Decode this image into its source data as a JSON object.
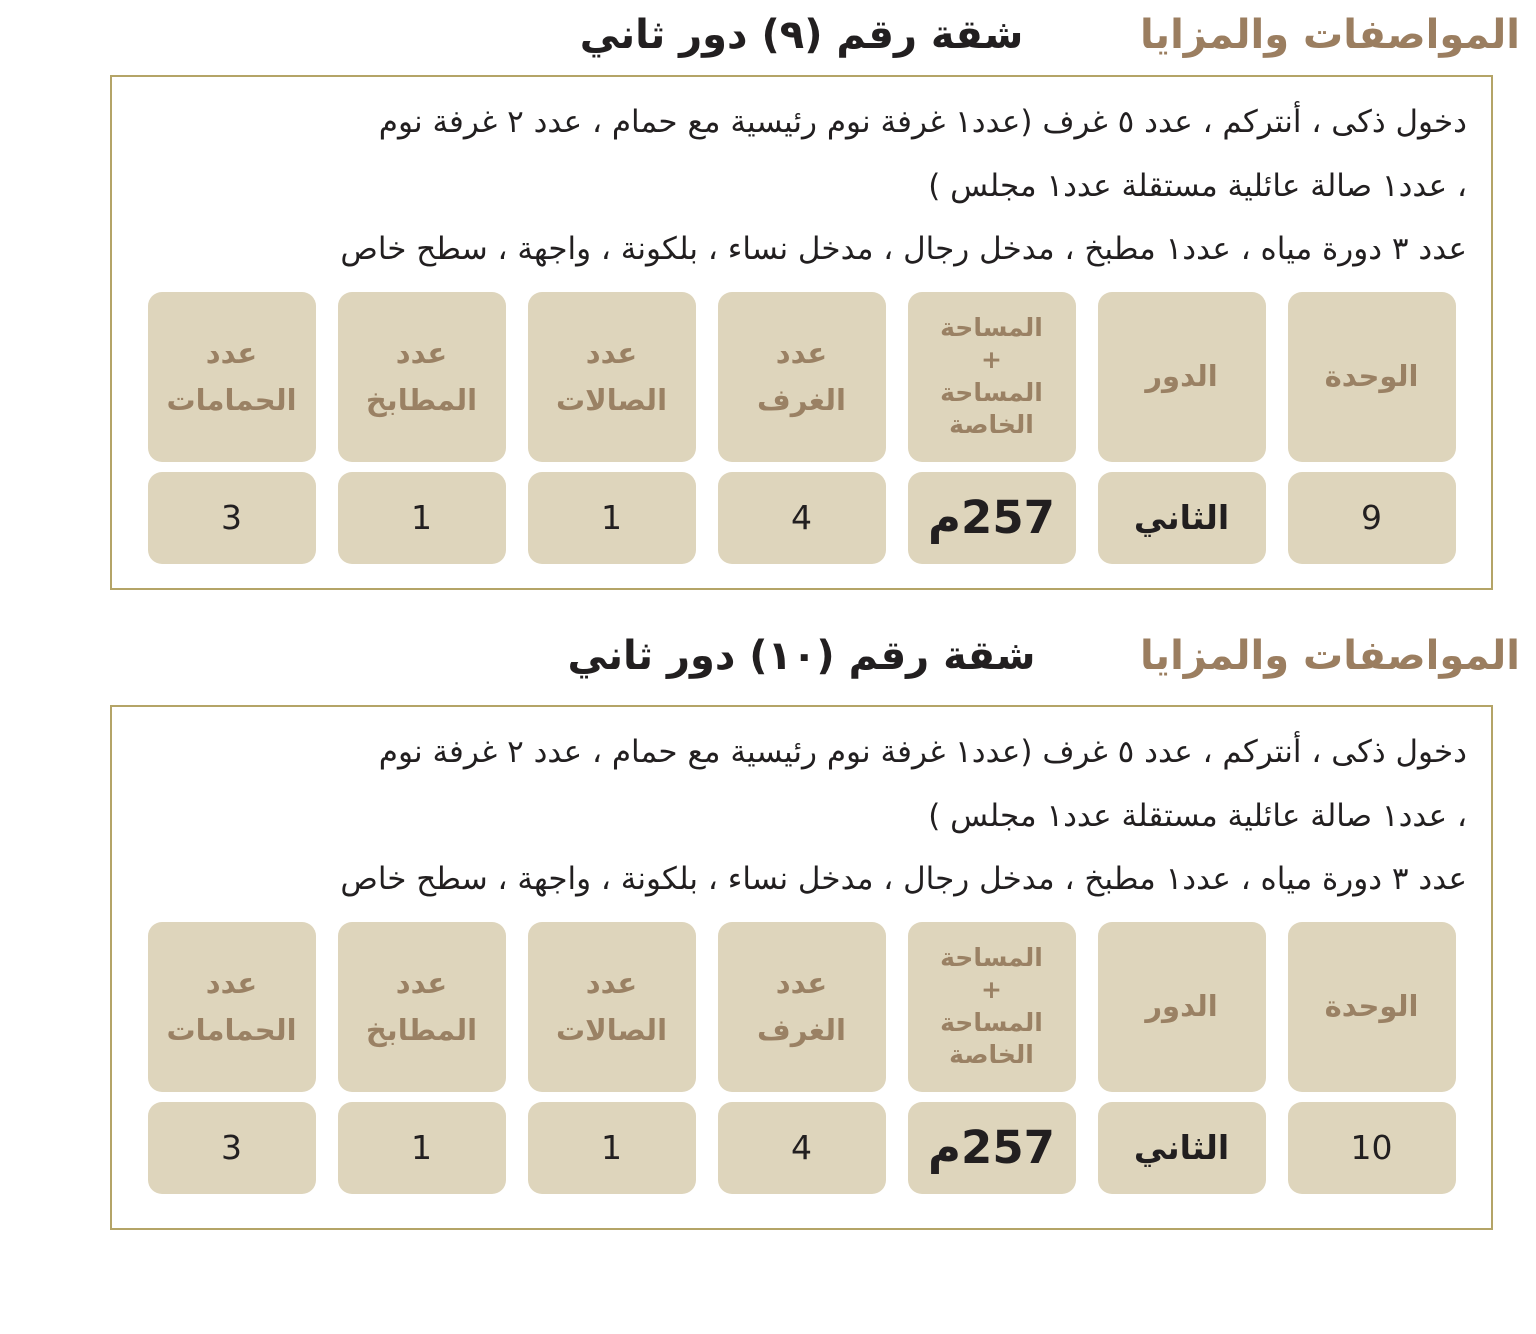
{
  "theme": {
    "accent_brown": "#9b7e60",
    "cell_bg": "#ded5bc",
    "header_text": "#9a8164",
    "border_gold": "#b4a467",
    "text_dark": "#221f20"
  },
  "sections": [
    {
      "label": "المواصفات والمزايا",
      "title": "شقة رقم (٩) دور ثاني",
      "description_lines": [
        "دخول ذكى ، أنتركم ، عدد ٥ غرف (عدد١ غرفة نوم رئيسية مع حمام ،  عدد ٢ غرفة نوم",
        "، عدد١ صالة عائلية مستقلة  عدد١ مجلس )",
        "عدد ٣ دورة مياه ، عدد١ مطبخ ، مدخل رجال ، مدخل نساء ، بلكونة ، واجهة ، سطح خاص"
      ],
      "table": {
        "headers": [
          "الوحدة",
          "الدور",
          "المساحة\n+\nالمساحة\nالخاصة",
          "عدد\nالغرف",
          "عدد\nالصالات",
          "عدد\nالمطابخ",
          "عدد\nالحمامات"
        ],
        "values": [
          "9",
          "الثاني",
          "257م",
          "4",
          "1",
          "1",
          "3"
        ]
      }
    },
    {
      "label": "المواصفات والمزايا",
      "title": "شقة رقم (١٠) دور ثاني",
      "description_lines": [
        "دخول ذكى ، أنتركم ، عدد ٥ غرف (عدد١ غرفة نوم رئيسية مع حمام ،  عدد ٢ غرفة نوم",
        "، عدد١ صالة عائلية مستقلة  عدد١ مجلس )",
        "عدد ٣ دورة مياه ، عدد١ مطبخ ، مدخل رجال ، مدخل نساء ، بلكونة ، واجهة ، سطح خاص"
      ],
      "table": {
        "headers": [
          "الوحدة",
          "الدور",
          "المساحة\n+\nالمساحة\nالخاصة",
          "عدد\nالغرف",
          "عدد\nالصالات",
          "عدد\nالمطابخ",
          "عدد\nالحمامات"
        ],
        "values": [
          "10",
          "الثاني",
          "257م",
          "4",
          "1",
          "1",
          "3"
        ]
      }
    }
  ]
}
